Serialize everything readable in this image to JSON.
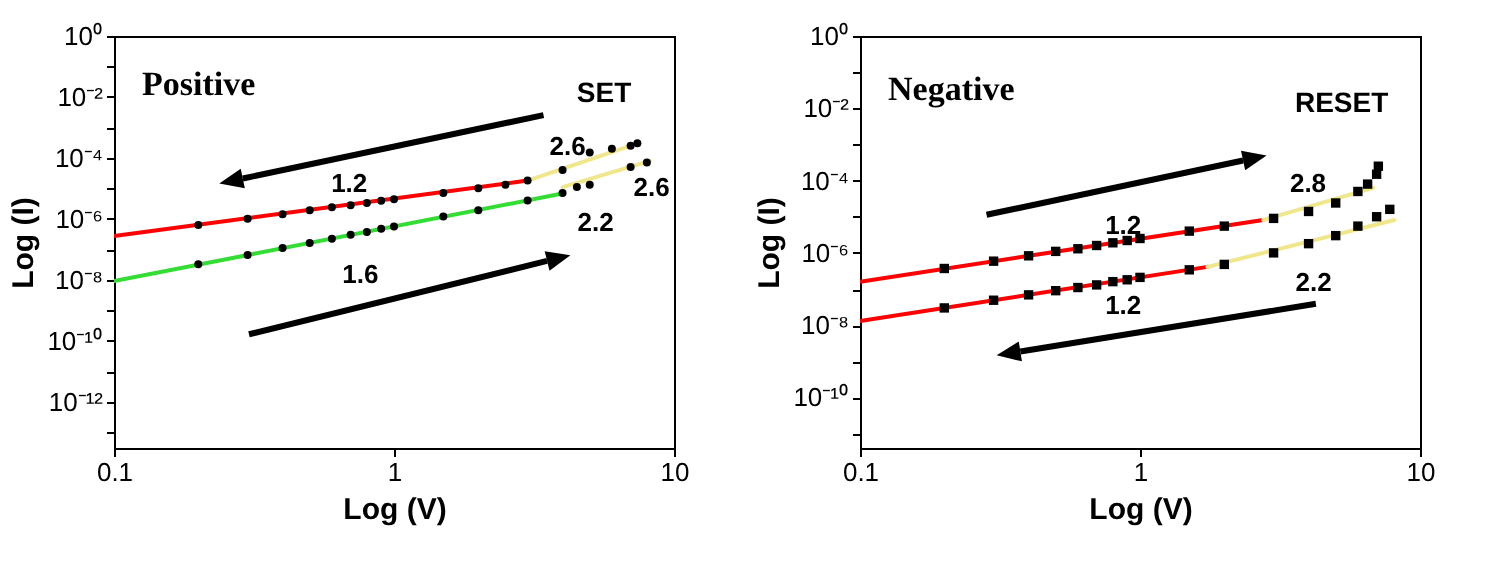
{
  "chart_data": [
    {
      "type": "line",
      "xlabel": "Log (V)",
      "ylabel": "Log (I)",
      "log": "xy",
      "grid": false,
      "xlim": [
        0.1,
        10
      ],
      "ylim": [
        3e-14,
        1
      ],
      "xticks": [
        0.1,
        1,
        10
      ],
      "yticks": [
        {
          "value": 1,
          "label": "10⁰"
        },
        {
          "value": 0.1,
          "label": null
        },
        {
          "value": 0.01,
          "label": "10⁻²"
        },
        {
          "value": 0.001,
          "label": null
        },
        {
          "value": 0.0001,
          "label": "10⁻⁴"
        },
        {
          "value": 1e-05,
          "label": null
        },
        {
          "value": 1e-06,
          "label": "10⁻⁶"
        },
        {
          "value": 1e-07,
          "label": null
        },
        {
          "value": 1e-08,
          "label": "10⁻⁸"
        },
        {
          "value": 1e-09,
          "label": null
        },
        {
          "value": 1e-10,
          "label": "10⁻¹⁰"
        },
        {
          "value": 1e-11,
          "label": null
        },
        {
          "value": 1e-12,
          "label": "10⁻¹²"
        },
        {
          "value": 1e-13,
          "label": null
        }
      ],
      "series": [
        {
          "type": "scatter",
          "marker": "circle",
          "color": "#000000",
          "x": [
            0.2,
            0.3,
            0.4,
            0.5,
            0.6,
            0.7,
            0.8,
            0.9,
            1,
            1.5,
            2,
            2.5,
            3,
            4,
            5,
            6,
            7,
            7.4
          ],
          "values": [
            6.3e-07,
            1e-06,
            1.4e-06,
            1.9e-06,
            2.4e-06,
            2.8e-06,
            3.3e-06,
            3.9e-06,
            4.4e-06,
            7e-06,
            1e-05,
            1.3e-05,
            1.8e-05,
            4e-05,
            0.00015,
            0.0002,
            0.00025,
            0.0003
          ]
        },
        {
          "color": "#ff0000",
          "x": [
            0.1,
            3.0
          ],
          "values": [
            2.7e-07,
            1.8e-05
          ]
        },
        {
          "color": "#f0e68c",
          "x": [
            3.0,
            7.4
          ],
          "values": [
            1.8e-05,
            0.0003
          ]
        },
        {
          "type": "scatter",
          "marker": "circle",
          "color": "#000000",
          "x": [
            0.2,
            0.3,
            0.4,
            0.5,
            0.6,
            0.7,
            0.8,
            0.9,
            1,
            1.5,
            2,
            3,
            4,
            4.5,
            5,
            7,
            8
          ],
          "values": [
            3.2e-08,
            6.5e-08,
            1.1e-07,
            1.6e-07,
            2.2e-07,
            3e-07,
            3.7e-07,
            4.7e-07,
            5.6e-07,
            1.2e-06,
            1.9e-06,
            4e-06,
            7e-06,
            1.1e-05,
            1.3e-05,
            5e-05,
            7e-05
          ]
        },
        {
          "color": "#33dd33",
          "x": [
            0.1,
            3.95
          ],
          "values": [
            9e-09,
            6.6e-06
          ]
        },
        {
          "color": "#f0e68c",
          "x": [
            4,
            8.2
          ],
          "values": [
            1.1e-05,
            8e-05
          ]
        }
      ],
      "annotations": [
        "Positive",
        "SET",
        "2.6",
        "1.2",
        "2.6",
        "2.2",
        "1.6"
      ]
    },
    {
      "type": "line",
      "xlabel": "Log (V)",
      "ylabel": "Log (I)",
      "log": "xy",
      "grid": false,
      "xlim": [
        0.1,
        10
      ],
      "ylim": [
        4e-12,
        1
      ],
      "xticks": [
        0.1,
        1,
        10
      ],
      "yticks": [
        {
          "value": 1,
          "label": "10⁰"
        },
        {
          "value": 0.1,
          "label": null
        },
        {
          "value": 0.01,
          "label": "10⁻²"
        },
        {
          "value": 0.001,
          "label": null
        },
        {
          "value": 0.0001,
          "label": "10⁻⁴"
        },
        {
          "value": 1e-05,
          "label": null
        },
        {
          "value": 1e-06,
          "label": "10⁻⁶"
        },
        {
          "value": 1e-07,
          "label": null
        },
        {
          "value": 1e-08,
          "label": "10⁻⁸"
        },
        {
          "value": 1e-09,
          "label": null
        },
        {
          "value": 1e-10,
          "label": "10⁻¹⁰"
        },
        {
          "value": 1e-11,
          "label": null
        }
      ],
      "series": [
        {
          "type": "scatter",
          "marker": "square",
          "color": "#000000",
          "x": [
            0.2,
            0.3,
            0.4,
            0.5,
            0.6,
            0.7,
            0.8,
            0.9,
            1,
            1.5,
            2,
            3,
            4,
            5,
            6,
            6.5,
            7,
            7.1
          ],
          "values": [
            3.7e-07,
            5.9e-07,
            8.3e-07,
            1.1e-06,
            1.3e-06,
            1.6e-06,
            1.9e-06,
            2.2e-06,
            2.5e-06,
            4e-06,
            5.5e-06,
            9e-06,
            1.4e-05,
            2.4e-05,
            5e-05,
            8e-05,
            0.00015,
            0.00025
          ]
        },
        {
          "color": "#ff0000",
          "x": [
            0.1,
            2.75
          ],
          "values": [
            1.6e-07,
            8.1e-06
          ]
        },
        {
          "color": "#f0e68c",
          "x": [
            2.75,
            6.8
          ],
          "values": [
            8.1e-06,
            6.3e-05
          ]
        },
        {
          "type": "scatter",
          "marker": "square",
          "color": "#000000",
          "x": [
            0.2,
            0.3,
            0.4,
            0.5,
            0.6,
            0.7,
            0.8,
            0.9,
            1,
            1.5,
            2,
            3,
            4,
            5,
            6,
            7,
            7.8
          ],
          "values": [
            3e-08,
            4.9e-08,
            6.9e-08,
            9e-08,
            1.1e-07,
            1.3e-07,
            1.6e-07,
            1.8e-07,
            2.1e-07,
            3.4e-07,
            4.8e-07,
            1e-06,
            1.8e-06,
            3e-06,
            5.5e-06,
            1e-05,
            1.6e-05
          ]
        },
        {
          "color": "#ff0000",
          "x": [
            0.1,
            1.74
          ],
          "values": [
            1.3e-08,
            4.1e-07
          ]
        },
        {
          "color": "#f0e68c",
          "x": [
            1.74,
            8.1
          ],
          "values": [
            4.1e-07,
            8.1e-06
          ]
        }
      ],
      "annotations": [
        "Negative",
        "RESET",
        "2.8",
        "1.2",
        "2.2",
        "1.2"
      ]
    }
  ]
}
